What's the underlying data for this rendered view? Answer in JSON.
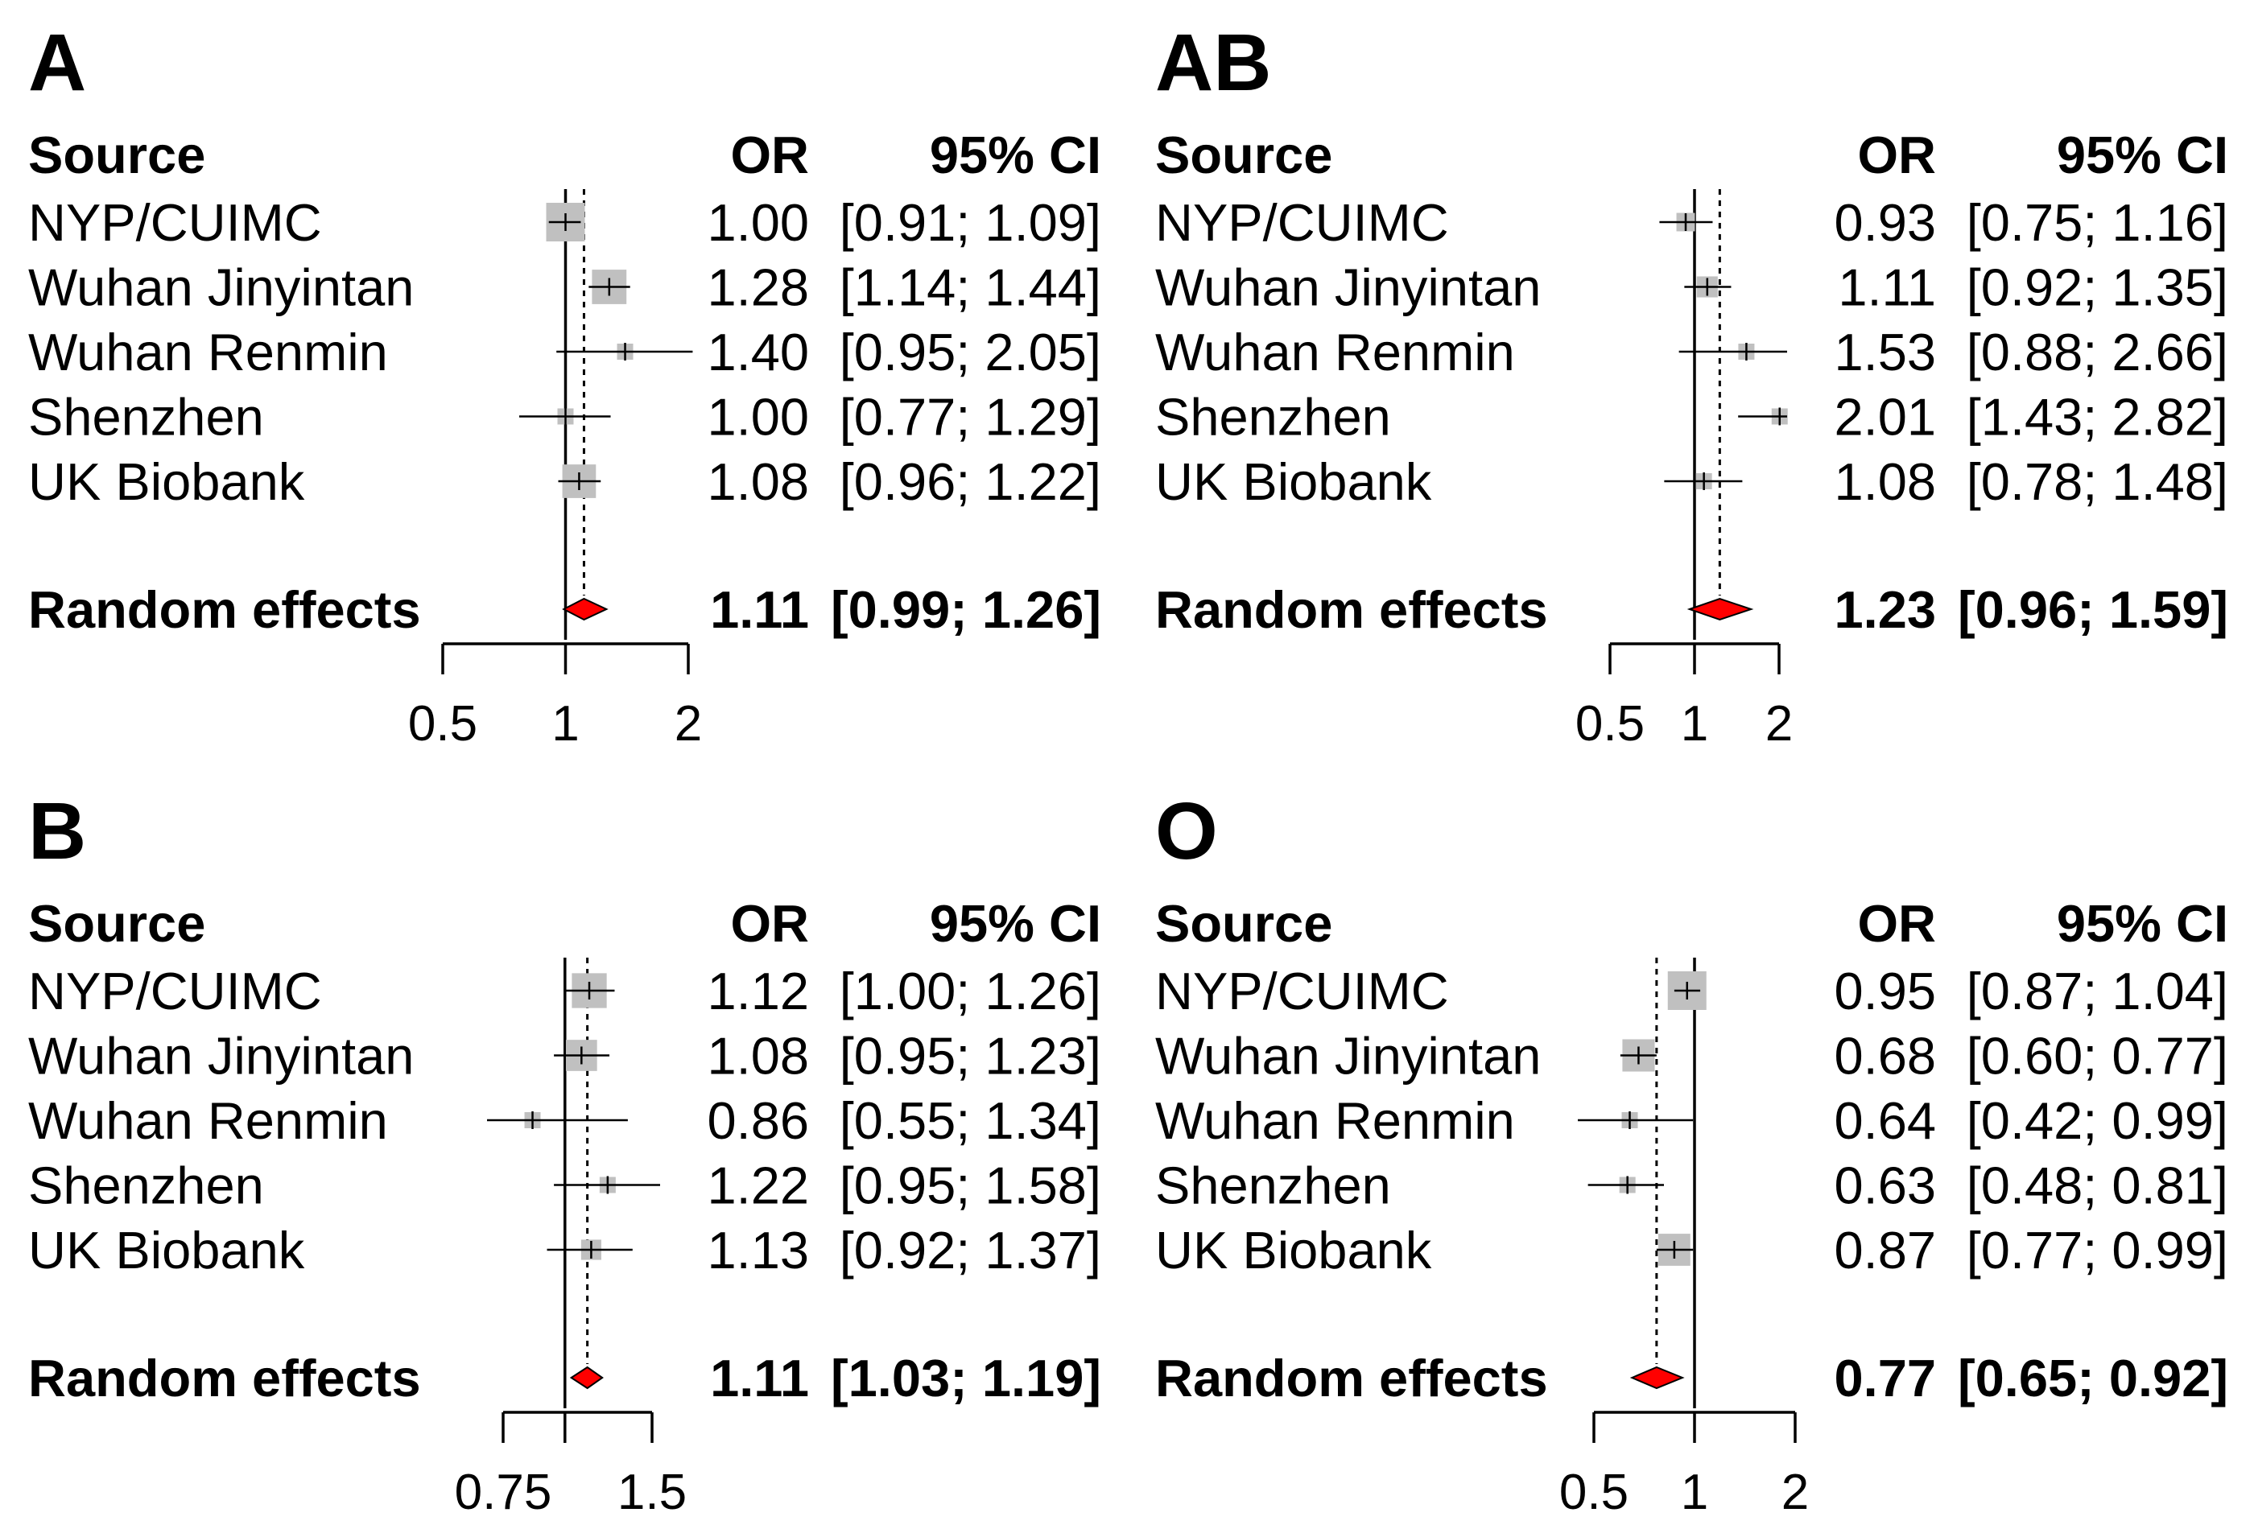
{
  "chart_data": [
    {
      "type": "forest",
      "panel_label": "A",
      "columns": {
        "source": "Source",
        "or": "OR",
        "ci": "95% CI"
      },
      "scale": "log",
      "xlim": [
        0.5,
        2
      ],
      "x_ticks": [
        0.5,
        1,
        2
      ],
      "x_tick_labels": [
        "0.5",
        "1",
        "2"
      ],
      "null_line": 1,
      "studies": [
        {
          "source": "NYP/CUIMC",
          "or": 1.0,
          "lo": 0.91,
          "hi": 1.09,
          "or_text": "1.00",
          "ci_text": "[0.91; 1.09]"
        },
        {
          "source": "Wuhan Jinyintan",
          "or": 1.28,
          "lo": 1.14,
          "hi": 1.44,
          "or_text": "1.28",
          "ci_text": "[1.14; 1.44]"
        },
        {
          "source": "Wuhan Renmin",
          "or": 1.4,
          "lo": 0.95,
          "hi": 2.05,
          "or_text": "1.40",
          "ci_text": "[0.95; 2.05]"
        },
        {
          "source": "Shenzhen",
          "or": 1.0,
          "lo": 0.77,
          "hi": 1.29,
          "or_text": "1.00",
          "ci_text": "[0.77; 1.29]"
        },
        {
          "source": "UK Biobank",
          "or": 1.08,
          "lo": 0.96,
          "hi": 1.22,
          "or_text": "1.08",
          "ci_text": "[0.96; 1.22]"
        }
      ],
      "pooled": {
        "label": "Random effects",
        "or": 1.11,
        "lo": 0.99,
        "hi": 1.26,
        "or_text": "1.11",
        "ci_text": "[0.99; 1.26]"
      }
    },
    {
      "type": "forest",
      "panel_label": "AB",
      "columns": {
        "source": "Source",
        "or": "OR",
        "ci": "95% CI"
      },
      "scale": "log",
      "xlim": [
        0.5,
        2
      ],
      "x_ticks": [
        0.5,
        1,
        2
      ],
      "x_tick_labels": [
        "0.5",
        "1",
        "2"
      ],
      "null_line": 1,
      "studies": [
        {
          "source": "NYP/CUIMC",
          "or": 0.93,
          "lo": 0.75,
          "hi": 1.16,
          "or_text": "0.93",
          "ci_text": "[0.75; 1.16]"
        },
        {
          "source": "Wuhan Jinyintan",
          "or": 1.11,
          "lo": 0.92,
          "hi": 1.35,
          "or_text": "1.11",
          "ci_text": "[0.92; 1.35]"
        },
        {
          "source": "Wuhan Renmin",
          "or": 1.53,
          "lo": 0.88,
          "hi": 2.66,
          "or_text": "1.53",
          "ci_text": "[0.88; 2.66]"
        },
        {
          "source": "Shenzhen",
          "or": 2.01,
          "lo": 1.43,
          "hi": 2.82,
          "or_text": "2.01",
          "ci_text": "[1.43; 2.82]"
        },
        {
          "source": "UK Biobank",
          "or": 1.08,
          "lo": 0.78,
          "hi": 1.48,
          "or_text": "1.08",
          "ci_text": "[0.78; 1.48]"
        }
      ],
      "pooled": {
        "label": "Random effects",
        "or": 1.23,
        "lo": 0.96,
        "hi": 1.59,
        "or_text": "1.23",
        "ci_text": "[0.96; 1.59]"
      }
    },
    {
      "type": "forest",
      "panel_label": "B",
      "columns": {
        "source": "Source",
        "or": "OR",
        "ci": "95% CI"
      },
      "scale": "log",
      "xlim": [
        0.75,
        1.5
      ],
      "x_ticks": [
        0.75,
        1.5
      ],
      "x_tick_labels": [
        "0.75",
        "1.5"
      ],
      "x_minor_ticks": [
        1
      ],
      "null_line": 1,
      "studies": [
        {
          "source": "NYP/CUIMC",
          "or": 1.12,
          "lo": 1.0,
          "hi": 1.26,
          "or_text": "1.12",
          "ci_text": "[1.00; 1.26]"
        },
        {
          "source": "Wuhan Jinyintan",
          "or": 1.08,
          "lo": 0.95,
          "hi": 1.23,
          "or_text": "1.08",
          "ci_text": "[0.95; 1.23]"
        },
        {
          "source": "Wuhan Renmin",
          "or": 0.86,
          "lo": 0.55,
          "hi": 1.34,
          "or_text": "0.86",
          "ci_text": "[0.55; 1.34]"
        },
        {
          "source": "Shenzhen",
          "or": 1.22,
          "lo": 0.95,
          "hi": 1.58,
          "or_text": "1.22",
          "ci_text": "[0.95; 1.58]"
        },
        {
          "source": "UK Biobank",
          "or": 1.13,
          "lo": 0.92,
          "hi": 1.37,
          "or_text": "1.13",
          "ci_text": "[0.92; 1.37]"
        }
      ],
      "pooled": {
        "label": "Random effects",
        "or": 1.11,
        "lo": 1.03,
        "hi": 1.19,
        "or_text": "1.11",
        "ci_text": "[1.03; 1.19]"
      }
    },
    {
      "type": "forest",
      "panel_label": "O",
      "columns": {
        "source": "Source",
        "or": "OR",
        "ci": "95% CI"
      },
      "scale": "log",
      "xlim": [
        0.5,
        2
      ],
      "x_ticks": [
        0.5,
        1,
        2
      ],
      "x_tick_labels": [
        "0.5",
        "1",
        "2"
      ],
      "null_line": 1,
      "studies": [
        {
          "source": "NYP/CUIMC",
          "or": 0.95,
          "lo": 0.87,
          "hi": 1.04,
          "or_text": "0.95",
          "ci_text": "[0.87; 1.04]"
        },
        {
          "source": "Wuhan Jinyintan",
          "or": 0.68,
          "lo": 0.6,
          "hi": 0.77,
          "or_text": "0.68",
          "ci_text": "[0.60; 0.77]"
        },
        {
          "source": "Wuhan Renmin",
          "or": 0.64,
          "lo": 0.42,
          "hi": 0.99,
          "or_text": "0.64",
          "ci_text": "[0.42; 0.99]"
        },
        {
          "source": "Shenzhen",
          "or": 0.63,
          "lo": 0.48,
          "hi": 0.81,
          "or_text": "0.63",
          "ci_text": "[0.48; 0.81]"
        },
        {
          "source": "UK Biobank",
          "or": 0.87,
          "lo": 0.77,
          "hi": 0.99,
          "or_text": "0.87",
          "ci_text": "[0.77; 0.99]"
        }
      ],
      "pooled": {
        "label": "Random effects",
        "or": 0.77,
        "lo": 0.65,
        "hi": 0.92,
        "or_text": "0.77",
        "ci_text": "[0.65; 0.92]"
      }
    }
  ],
  "colors": {
    "study_box": "#c0c0c0",
    "pooled_diamond": "#ff0000",
    "lines": "#000000"
  }
}
